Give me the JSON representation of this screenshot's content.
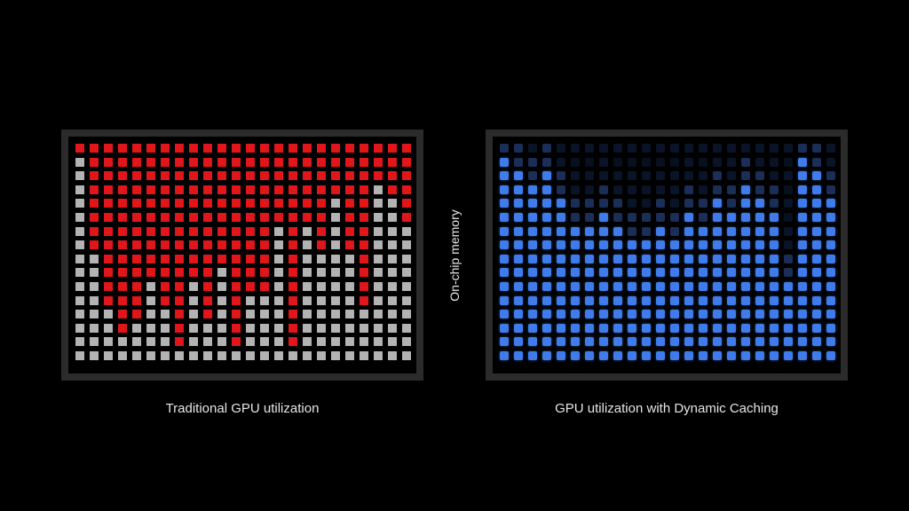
{
  "labels": {
    "left_caption": "Traditional GPU utilization",
    "right_caption": "GPU utilization with Dynamic Caching",
    "axis_label": "On-chip memory"
  },
  "colors": {
    "background": "#000000",
    "panel_border": "#2b2b2b",
    "used_red": "#e0161a",
    "unused_gray": "#b3b3b3",
    "blue_full": "#3f7bea",
    "blue_dim": "#1b2e58",
    "blue_empty": "#0a1428"
  },
  "grid": {
    "columns": 24,
    "rows": 16
  },
  "traditional_red_rows_per_column": [
    1,
    8,
    12,
    14,
    13,
    10,
    12,
    15,
    10,
    13,
    9,
    15,
    11,
    11,
    6,
    15,
    6,
    8,
    4,
    8,
    12,
    3,
    4,
    6
  ],
  "dynamic_caching_fill_per_column": [
    15,
    14,
    13,
    14,
    12,
    10,
    10,
    11,
    10,
    9,
    9,
    10,
    9,
    11,
    10,
    12,
    11,
    13,
    12,
    11,
    6,
    15,
    14,
    12
  ]
}
